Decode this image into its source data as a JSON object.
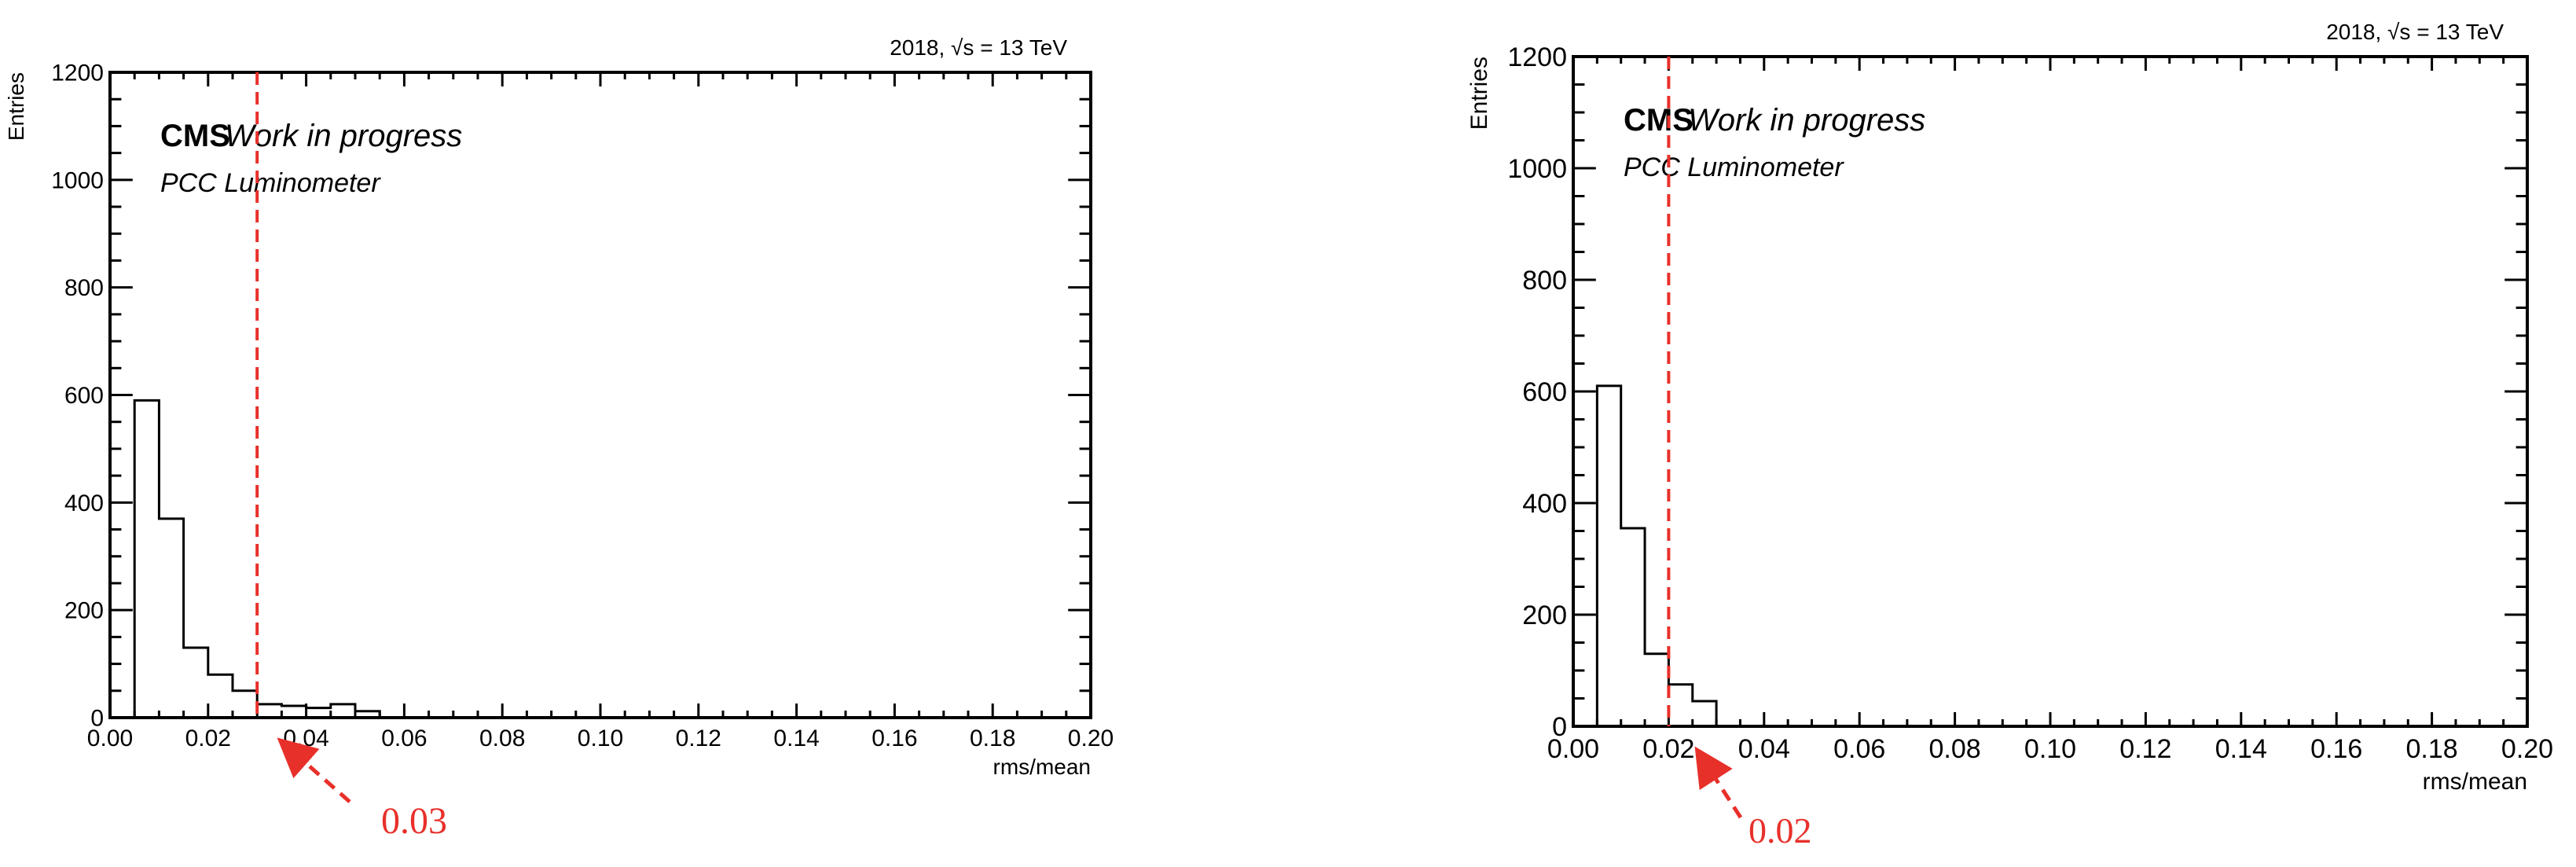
{
  "chart_data": [
    {
      "type": "histogram",
      "title": "",
      "energy_label": "2018, √s = 13 TeV",
      "experiment_label": "CMS",
      "status_label": "Work in progress",
      "detector_label": "PCC Luminometer",
      "xlabel": "rms/mean",
      "ylabel": "Entries",
      "xlim": [
        0,
        0.2
      ],
      "ylim": [
        0,
        1200
      ],
      "x_ticks": [
        "0.00",
        "0.02",
        "0.04",
        "0.06",
        "0.08",
        "0.10",
        "0.12",
        "0.14",
        "0.16",
        "0.18",
        "0.20"
      ],
      "y_ticks": [
        "0",
        "200",
        "400",
        "600",
        "800",
        "1000",
        "1200"
      ],
      "grid": false,
      "bin_width": 0.005,
      "bins_x_start": [
        0.005,
        0.01,
        0.015,
        0.02,
        0.025,
        0.03,
        0.035,
        0.04,
        0.045,
        0.05,
        0.055
      ],
      "values": [
        590,
        370,
        130,
        80,
        50,
        25,
        22,
        18,
        25,
        12,
        0
      ],
      "cut_value": 0.03,
      "cut_label": "0.03",
      "cut_color": "#e8302a"
    },
    {
      "type": "histogram",
      "title": "",
      "energy_label": "2018, √s = 13 TeV",
      "experiment_label": "CMS",
      "status_label": "Work in progress",
      "detector_label": "PCC Luminometer",
      "xlabel": "rms/mean",
      "ylabel": "Entries",
      "xlim": [
        0,
        0.2
      ],
      "ylim": [
        0,
        1200
      ],
      "x_ticks": [
        "0.00",
        "0.02",
        "0.04",
        "0.06",
        "0.08",
        "0.10",
        "0.12",
        "0.14",
        "0.16",
        "0.18",
        "0.20"
      ],
      "y_ticks": [
        "0",
        "200",
        "400",
        "600",
        "800",
        "1000",
        "1200"
      ],
      "grid": false,
      "bin_width": 0.005,
      "bins_x_start": [
        0.005,
        0.01,
        0.015,
        0.02,
        0.025,
        0.03
      ],
      "values": [
        610,
        355,
        130,
        75,
        45,
        0
      ],
      "cut_value": 0.02,
      "cut_label": "0.02",
      "cut_color": "#e8302a"
    }
  ]
}
